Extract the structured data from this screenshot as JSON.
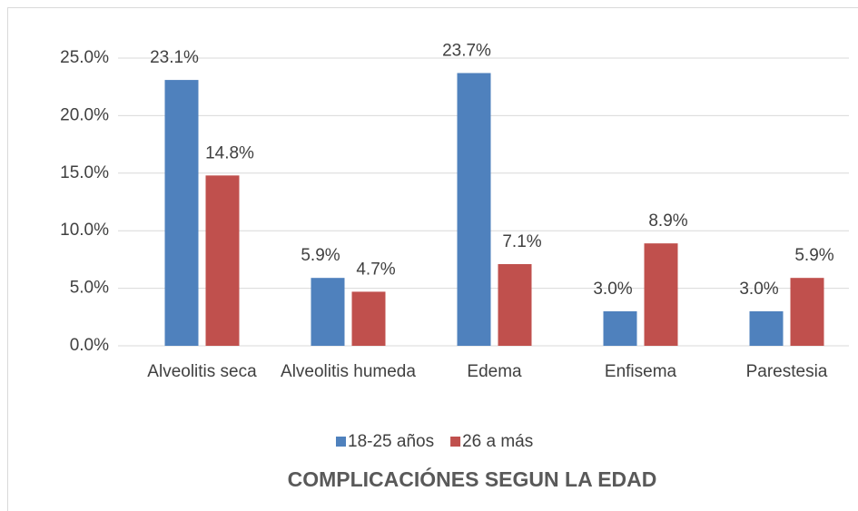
{
  "chart_data": {
    "type": "bar",
    "title": "COMPLICACIÓNES SEGUN LA EDAD",
    "categories": [
      "Alveolitis seca",
      "Alveolitis humeda",
      "Edema",
      "Enfisema",
      "Parestesia"
    ],
    "series": [
      {
        "name": "18-25 años",
        "color": "#4f81bd",
        "values": [
          23.1,
          5.9,
          23.7,
          3.0,
          3.0
        ],
        "value_labels": [
          "23.1%",
          "5.9%",
          "23.7%",
          "3.0%",
          "3.0%"
        ]
      },
      {
        "name": "26 a más",
        "color": "#c0504d",
        "values": [
          14.8,
          4.7,
          7.1,
          8.9,
          5.9
        ],
        "value_labels": [
          "14.8%",
          "4.7%",
          "7.1%",
          "8.9%",
          "5.9%"
        ]
      }
    ],
    "ylim": [
      0,
      25
    ],
    "yticks": [
      {
        "value": 0,
        "label": "0.0%"
      },
      {
        "value": 5,
        "label": "5.0%"
      },
      {
        "value": 10,
        "label": "10.0%"
      },
      {
        "value": 15,
        "label": "15.0%"
      },
      {
        "value": 20,
        "label": "20.0%"
      },
      {
        "value": 25,
        "label": "25.0%"
      }
    ],
    "grid": true,
    "legend": "bottom"
  }
}
